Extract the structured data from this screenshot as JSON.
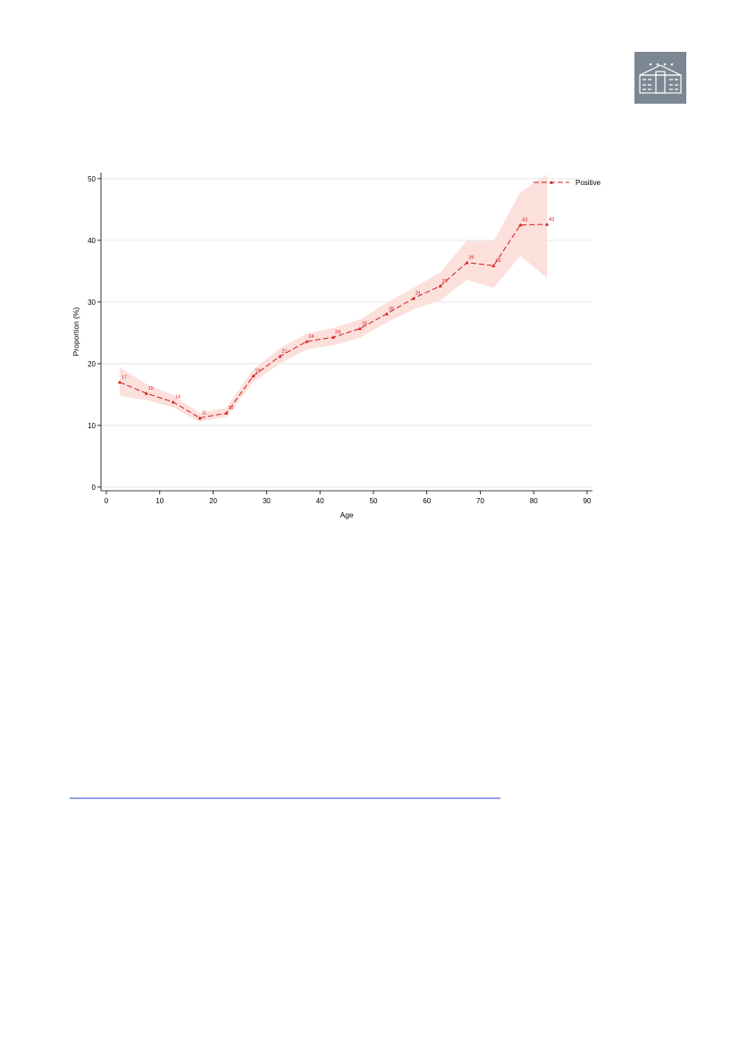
{
  "chart_data": {
    "type": "line",
    "x_label": "Age",
    "y_label": "Proportion (%)",
    "x": [
      2.5,
      7.5,
      12.5,
      17.5,
      22.5,
      27.5,
      32.5,
      37.5,
      42.5,
      47.5,
      52.5,
      57.5,
      62.5,
      67.5,
      72.5,
      77.5,
      82.5
    ],
    "series": [
      {
        "name": "Positive",
        "color": "#d7191c",
        "band_color": "#fbe0dc",
        "values": [
          17.0,
          15.2,
          13.8,
          11.2,
          12.0,
          18.0,
          21.2,
          23.6,
          24.3,
          25.7,
          28.1,
          30.6,
          32.6,
          36.4,
          35.9,
          42.5,
          42.6
        ],
        "value_labels": [
          "17",
          "15",
          "14",
          "11",
          "12",
          "18",
          "21",
          "24",
          "24",
          "26",
          "28",
          "31",
          "33",
          "36",
          "36",
          "43",
          "43"
        ],
        "ci_lower": [
          14.8,
          14.1,
          12.9,
          10.6,
          11.4,
          17.0,
          20.0,
          22.3,
          23.0,
          24.2,
          26.7,
          28.8,
          30.3,
          33.6,
          32.3,
          37.5,
          33.9
        ],
        "ci_upper": [
          19.4,
          16.7,
          14.9,
          12.0,
          12.9,
          19.1,
          22.5,
          24.9,
          25.8,
          27.2,
          29.9,
          32.3,
          34.8,
          39.9,
          39.9,
          47.8,
          50.7
        ]
      }
    ],
    "xlim": [
      -1,
      91
    ],
    "ylim": [
      -0.6,
      51
    ],
    "xticks": [
      0,
      10,
      20,
      30,
      40,
      50,
      60,
      70,
      80,
      90
    ],
    "yticks": [
      0,
      10,
      20,
      30,
      40,
      50
    ],
    "grid": true,
    "legend": "top-right"
  }
}
